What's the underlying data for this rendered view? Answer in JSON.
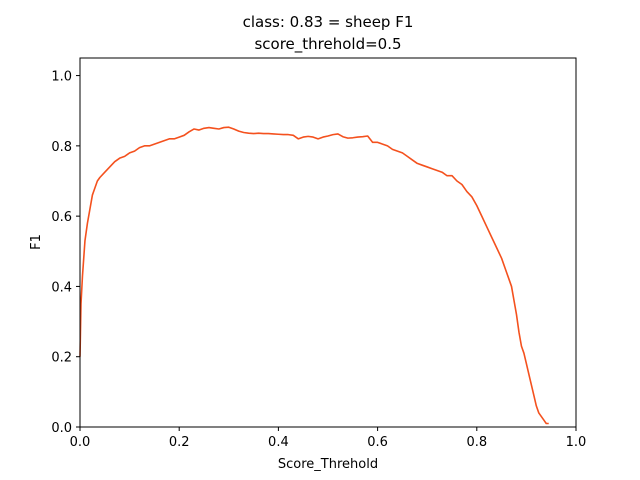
{
  "chart_data": {
    "type": "line",
    "title": "class: 0.83 = sheep F1",
    "subtitle": "score_threhold=0.5",
    "xlabel": "Score_Threhold",
    "ylabel": "F1",
    "xlim": [
      0.0,
      1.0
    ],
    "ylim": [
      0.0,
      1.05
    ],
    "xticks": [
      "0.0",
      "0.2",
      "0.4",
      "0.6",
      "0.8",
      "1.0"
    ],
    "yticks": [
      "0.0",
      "0.2",
      "0.4",
      "0.6",
      "0.8",
      "1.0"
    ],
    "grid": false,
    "line_color": "#f4511e",
    "series": [
      {
        "x": [
          0.0,
          0.002,
          0.005,
          0.008,
          0.01,
          0.015,
          0.02,
          0.025,
          0.03,
          0.035,
          0.04,
          0.05,
          0.06,
          0.07,
          0.08,
          0.09,
          0.1,
          0.11,
          0.12,
          0.13,
          0.14,
          0.15,
          0.16,
          0.17,
          0.18,
          0.19,
          0.2,
          0.21,
          0.22,
          0.23,
          0.24,
          0.25,
          0.26,
          0.27,
          0.28,
          0.29,
          0.3,
          0.31,
          0.32,
          0.33,
          0.34,
          0.35,
          0.36,
          0.37,
          0.38,
          0.39,
          0.4,
          0.41,
          0.42,
          0.43,
          0.44,
          0.45,
          0.46,
          0.47,
          0.48,
          0.49,
          0.5,
          0.51,
          0.52,
          0.53,
          0.54,
          0.55,
          0.56,
          0.57,
          0.58,
          0.59,
          0.6,
          0.61,
          0.62,
          0.63,
          0.64,
          0.65,
          0.66,
          0.67,
          0.68,
          0.69,
          0.7,
          0.71,
          0.72,
          0.73,
          0.74,
          0.75,
          0.76,
          0.77,
          0.78,
          0.79,
          0.8,
          0.81,
          0.82,
          0.83,
          0.84,
          0.85,
          0.86,
          0.87,
          0.875,
          0.88,
          0.885,
          0.89,
          0.895,
          0.9,
          0.905,
          0.91,
          0.915,
          0.92,
          0.925,
          0.93,
          0.935,
          0.94,
          0.945
        ],
        "y": [
          0.2,
          0.35,
          0.43,
          0.49,
          0.53,
          0.58,
          0.62,
          0.66,
          0.68,
          0.7,
          0.71,
          0.725,
          0.74,
          0.755,
          0.765,
          0.77,
          0.78,
          0.785,
          0.795,
          0.8,
          0.8,
          0.805,
          0.81,
          0.815,
          0.82,
          0.82,
          0.825,
          0.83,
          0.84,
          0.848,
          0.845,
          0.85,
          0.852,
          0.85,
          0.848,
          0.852,
          0.853,
          0.848,
          0.842,
          0.838,
          0.836,
          0.835,
          0.836,
          0.835,
          0.835,
          0.834,
          0.833,
          0.832,
          0.832,
          0.83,
          0.82,
          0.825,
          0.827,
          0.825,
          0.82,
          0.825,
          0.828,
          0.832,
          0.834,
          0.826,
          0.822,
          0.823,
          0.825,
          0.826,
          0.828,
          0.81,
          0.81,
          0.805,
          0.8,
          0.79,
          0.785,
          0.78,
          0.77,
          0.76,
          0.75,
          0.745,
          0.74,
          0.735,
          0.73,
          0.725,
          0.715,
          0.715,
          0.7,
          0.69,
          0.67,
          0.655,
          0.63,
          0.6,
          0.57,
          0.54,
          0.51,
          0.48,
          0.44,
          0.4,
          0.36,
          0.32,
          0.27,
          0.23,
          0.21,
          0.18,
          0.15,
          0.12,
          0.09,
          0.06,
          0.04,
          0.03,
          0.02,
          0.01,
          0.01
        ]
      }
    ]
  }
}
